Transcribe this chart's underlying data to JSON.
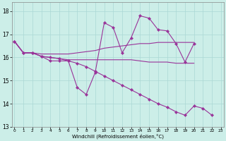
{
  "bg_color": "#cceee8",
  "line_color": "#993399",
  "xlabel": "Windchill (Refroidissement éolien,°C)",
  "ylim": [
    13,
    18.4
  ],
  "xlim": [
    -0.3,
    23.3
  ],
  "yticks": [
    13,
    14,
    15,
    16,
    17,
    18
  ],
  "xticks": [
    0,
    1,
    2,
    3,
    4,
    5,
    6,
    7,
    8,
    9,
    10,
    11,
    12,
    13,
    14,
    15,
    16,
    17,
    18,
    19,
    20,
    21,
    22,
    23
  ],
  "lines": [
    {
      "x": [
        0,
        1,
        2,
        3,
        4,
        5,
        6,
        7,
        8,
        9,
        10,
        11,
        12,
        13,
        14,
        15,
        16,
        17,
        18,
        19,
        20,
        21,
        22,
        23
      ],
      "y": [
        16.7,
        16.2,
        16.2,
        16.05,
        15.85,
        15.85,
        15.85,
        14.7,
        14.4,
        15.35,
        17.5,
        17.3,
        16.2,
        16.85,
        17.8,
        17.7,
        17.2,
        17.15,
        16.6,
        15.8,
        16.6,
        null,
        null,
        null
      ],
      "has_markers": true
    },
    {
      "x": [
        0,
        1,
        2,
        3,
        4,
        5,
        6,
        7,
        8,
        9,
        10,
        11,
        12,
        13,
        14,
        15,
        16,
        17,
        18,
        19,
        20,
        21,
        22,
        23
      ],
      "y": [
        16.7,
        16.2,
        16.2,
        16.15,
        16.15,
        16.15,
        16.15,
        16.2,
        16.25,
        16.3,
        16.4,
        16.45,
        16.5,
        16.55,
        16.6,
        16.6,
        16.65,
        16.65,
        16.65,
        16.65,
        16.65,
        null,
        null,
        null
      ],
      "has_markers": false
    },
    {
      "x": [
        0,
        1,
        2,
        3,
        4,
        5,
        6,
        7,
        8,
        9,
        10,
        11,
        12,
        13,
        14,
        15,
        16,
        17,
        18,
        19,
        20,
        21,
        22,
        23
      ],
      "y": [
        16.7,
        16.2,
        16.2,
        16.05,
        16.0,
        15.95,
        15.9,
        15.9,
        15.9,
        15.9,
        15.9,
        15.9,
        15.9,
        15.9,
        15.85,
        15.8,
        15.8,
        15.8,
        15.75,
        15.75,
        15.75,
        null,
        null,
        null
      ],
      "has_markers": false
    },
    {
      "x": [
        0,
        1,
        2,
        3,
        4,
        5,
        6,
        7,
        8,
        9,
        10,
        11,
        12,
        13,
        14,
        15,
        16,
        17,
        18,
        19,
        20,
        21,
        22,
        23
      ],
      "y": [
        16.7,
        16.2,
        16.2,
        16.05,
        16.0,
        15.95,
        15.85,
        15.75,
        15.6,
        15.4,
        15.2,
        15.0,
        14.8,
        14.6,
        14.4,
        14.2,
        14.0,
        13.85,
        13.65,
        13.5,
        13.9,
        13.8,
        13.5,
        null
      ],
      "has_markers": true
    }
  ]
}
